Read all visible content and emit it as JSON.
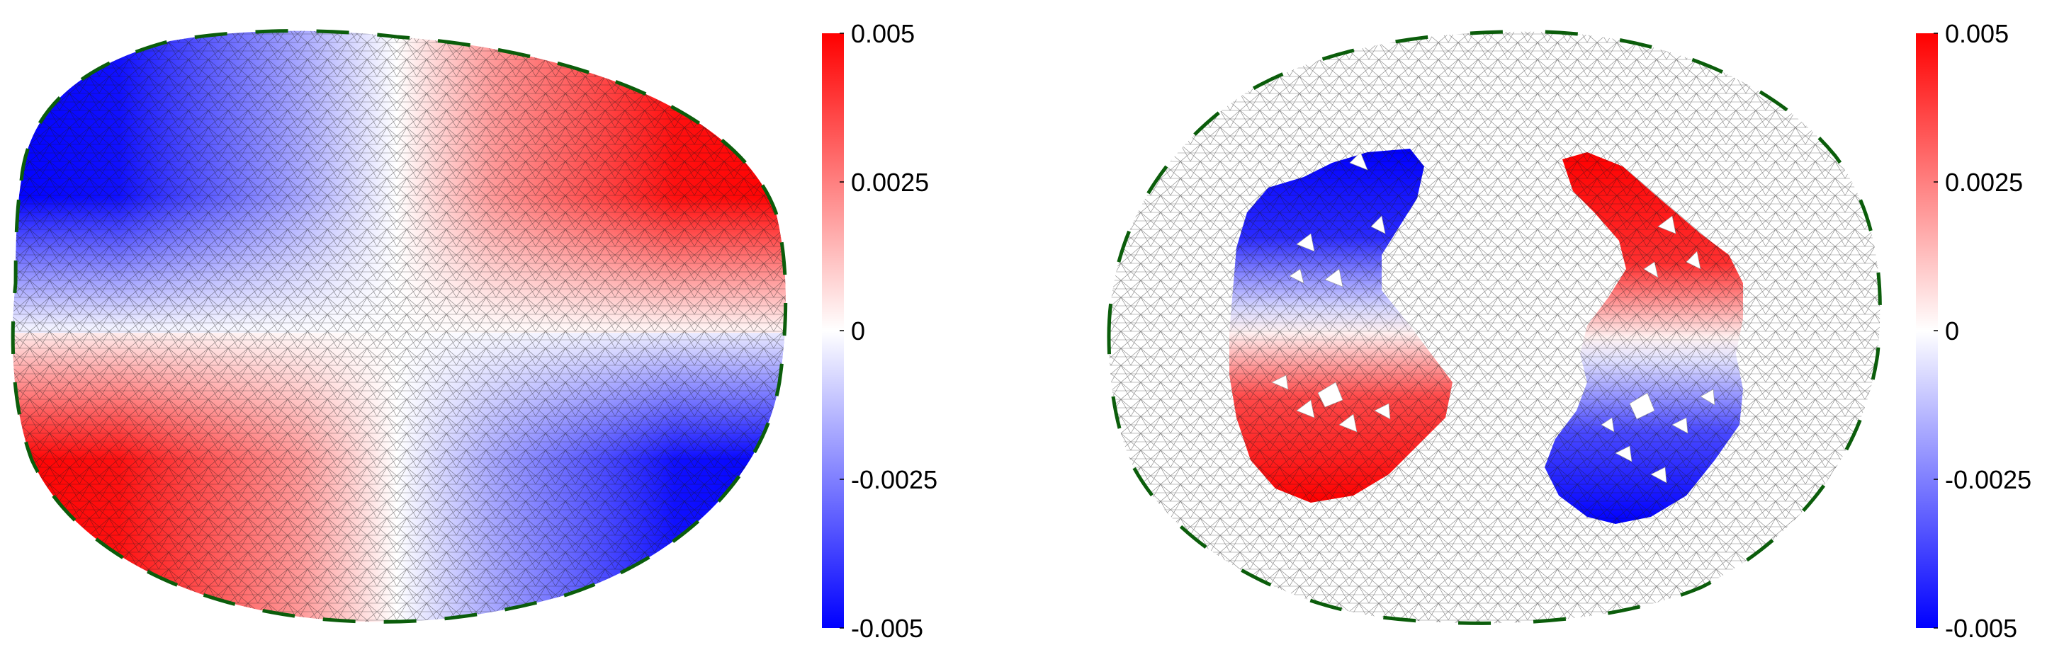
{
  "chart_data": [
    {
      "type": "heatmap",
      "panel": "left",
      "description": "triangular mesh field",
      "colorbar": {
        "min": -0.005,
        "max": 0.005,
        "ticks": [
          0.005,
          0.0025,
          0,
          -0.0025,
          -0.005
        ],
        "tick_labels": [
          "0.005",
          "0.0025",
          "0",
          "-0.0025",
          "-0.005"
        ],
        "colormap": [
          "#0000ff",
          "#ffffff",
          "#ff0000"
        ]
      },
      "field": {
        "pattern": "quadrupole",
        "regions": [
          {
            "quadrant": "top-left",
            "value": -0.005
          },
          {
            "quadrant": "top-right",
            "value": 0.005
          },
          {
            "quadrant": "bottom-left",
            "value": 0.005
          },
          {
            "quadrant": "bottom-right",
            "value": -0.005
          }
        ],
        "zero_lines": [
          "vertical-center",
          "horizontal-center"
        ]
      },
      "boundary": {
        "style": "dashed",
        "color": "#0b5d0b"
      }
    },
    {
      "type": "heatmap",
      "panel": "right",
      "description": "triangular mesh field restricted to two lobes",
      "colorbar": {
        "min": -0.005,
        "max": 0.005,
        "ticks": [
          0.005,
          0.0025,
          0,
          -0.0025,
          -0.005
        ],
        "tick_labels": [
          "0.005",
          "0.0025",
          "0",
          "-0.0025",
          "-0.005"
        ],
        "colormap": [
          "#0000ff",
          "#ffffff",
          "#ff0000"
        ]
      },
      "field": {
        "pattern": "two-lobe quadrupole",
        "regions": [
          {
            "lobe": "left-upper",
            "value": -0.005
          },
          {
            "lobe": "left-lower",
            "value": 0.005
          },
          {
            "lobe": "right-upper",
            "value": 0.005
          },
          {
            "lobe": "right-lower",
            "value": -0.005
          }
        ],
        "outside_lobes": "no color (mesh only)"
      },
      "boundary": {
        "style": "dashed",
        "color": "#0b5d0b"
      }
    }
  ]
}
